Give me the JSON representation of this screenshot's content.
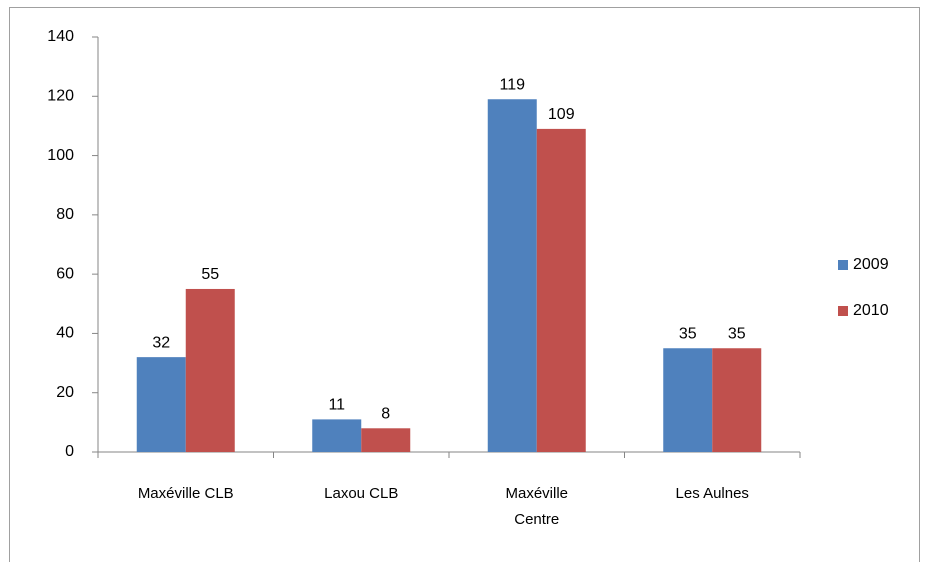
{
  "chart_data": {
    "type": "bar",
    "categories": [
      "Maxéville CLB",
      "Laxou CLB",
      "Maxéville Centre",
      "Les Aulnes"
    ],
    "series": [
      {
        "name": "2009",
        "color": "#4f81bd",
        "values": [
          32,
          11,
          119,
          35
        ]
      },
      {
        "name": "2010",
        "color": "#c0504d",
        "values": [
          55,
          8,
          109,
          35
        ]
      }
    ],
    "ylim": [
      0,
      140
    ],
    "yticks": [
      0,
      20,
      40,
      60,
      80,
      100,
      120,
      140
    ],
    "grid": false,
    "legend": "right"
  }
}
